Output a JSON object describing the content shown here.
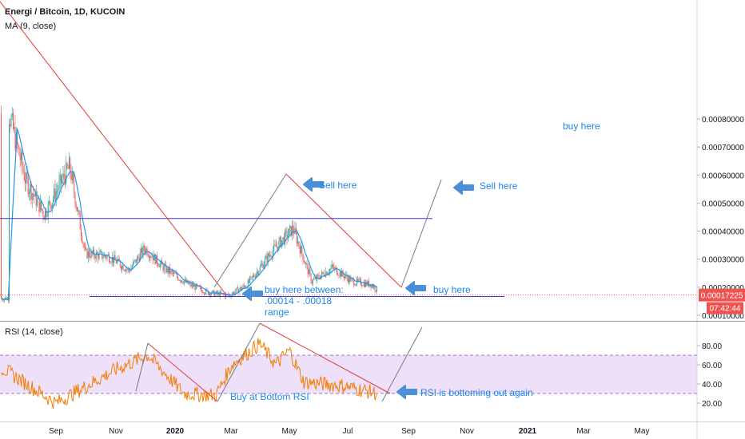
{
  "chart_data": {
    "type": "candlestick",
    "title": "Energi / Bitcoin, 1D, KUCOIN",
    "indicator": "MA (9, close)",
    "price_axis": {
      "ticks": [
        "0.00080000",
        "0.00070000",
        "0.00060000",
        "0.00050000",
        "0.00040000",
        "0.00030000",
        "0.00020000",
        "0.00010000"
      ],
      "tick_values": [
        0.0008,
        0.0007,
        0.0006,
        0.0005,
        0.0004,
        0.0003,
        0.0002,
        0.0001
      ],
      "current_price": "0.00017225",
      "countdown": "07:42:44"
    },
    "time_axis": {
      "ticks": [
        "Sep",
        "Nov",
        "2020",
        "Mar",
        "May",
        "Jul",
        "Sep",
        "Nov",
        "2021",
        "Mar",
        "May"
      ]
    },
    "candles_approx": {
      "description_dates": [
        "2019-07-15",
        "2019-08-01",
        "2019-08-20",
        "2019-09-15",
        "2019-10-01",
        "2019-10-25",
        "2019-11-15",
        "2019-12-01",
        "2019-12-20",
        "2020-01-15",
        "2020-02-05",
        "2020-02-25",
        "2020-03-15",
        "2020-04-10",
        "2020-05-01",
        "2020-05-20",
        "2020-06-10",
        "2020-07-01",
        "2020-07-20",
        "2020-08-05"
      ],
      "close": [
        0.00082,
        0.00058,
        0.00046,
        0.00063,
        0.00032,
        0.00031,
        0.00026,
        0.00034,
        0.00027,
        0.00021,
        0.00018,
        0.00017,
        0.00021,
        0.00033,
        0.00041,
        0.00022,
        0.00027,
        0.00022,
        0.00021,
        0.00016
      ]
    },
    "annotations": [
      {
        "text": "Sell here",
        "label": "sell-here-1"
      },
      {
        "text": "Sell here",
        "label": "sell-here-2"
      },
      {
        "text": "buy here",
        "label": "buy-here-top"
      },
      {
        "text": "buy here",
        "label": "buy-here-arrow"
      },
      {
        "text": "buy here between:",
        "label": "buy-between-1"
      },
      {
        "text": ".00014 - .00018",
        "label": "buy-between-2"
      },
      {
        "text": "range",
        "label": "buy-between-3"
      }
    ],
    "horizontal_lines": [
      0.000445,
      0.000167
    ],
    "rsi": {
      "title": "RSI (14, close)",
      "ticks": [
        "80.00",
        "60.00",
        "40.00",
        "20.00"
      ],
      "tick_values": [
        80,
        60,
        40,
        20
      ],
      "band": [
        30,
        70
      ],
      "annotations": [
        {
          "text": "Buy at Bottom RSI"
        },
        {
          "text": "RSI is bottoming out again"
        }
      ]
    },
    "colors": {
      "up": "#26a69a",
      "down": "#ef5350",
      "ma": "#2196f3",
      "rsi_line": "#f57c00",
      "trendline": "#e53935",
      "hline": "#3b3bd1",
      "annotation_text": "#1e88e5",
      "rsi_band": "#e9d6f7",
      "price_tag": "#ef5350"
    }
  }
}
